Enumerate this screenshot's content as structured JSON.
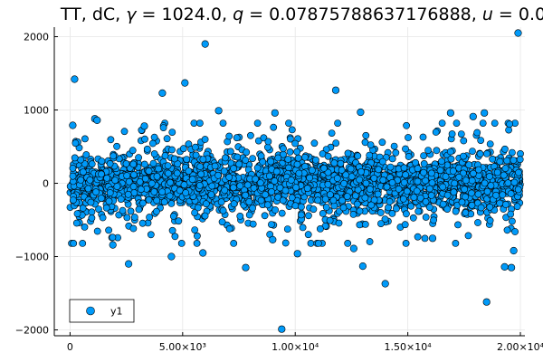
{
  "chart_data": {
    "type": "scatter",
    "title": "TT, dC, γ = 1024.0, q = 0.07875788637176888, u = 0.0",
    "title_parts": {
      "prefix": "TT, dC, ",
      "gamma_sym": "γ",
      "gamma_val": " = 1024.0, ",
      "q_sym": "q",
      "q_val": " = 0.07875788637176888, ",
      "u_sym": "u",
      "u_val": " = 0.0"
    },
    "xlabel": "",
    "ylabel": "",
    "xlim": [
      -700,
      20200
    ],
    "ylim": [
      -2080,
      2130
    ],
    "x_ticks": [
      0,
      5000,
      10000,
      15000,
      20000
    ],
    "x_tick_labels": [
      "0",
      "5.00×10³",
      "1.00×10⁴",
      "1.50×10⁴",
      "2.00×10⁴"
    ],
    "y_ticks": [
      -2000,
      -1000,
      0,
      1000,
      2000
    ],
    "y_tick_labels": [
      "−2000",
      "−1000",
      "0",
      "1000",
      "2000"
    ],
    "grid": true,
    "legend": {
      "position": "bottom-left",
      "label": "y1"
    },
    "colors": {
      "series": "#009AF9",
      "stroke": "#000000",
      "grid": "#e6e6e6"
    },
    "series": [
      {
        "name": "y1",
        "n_points": 20000,
        "x_range": [
          1,
          20000
        ],
        "typical_abs_y": 300,
        "outliers": [
          {
            "x": 200,
            "y": 1420
          },
          {
            "x": 120,
            "y": 790
          },
          {
            "x": 1100,
            "y": 880
          },
          {
            "x": 1200,
            "y": 860
          },
          {
            "x": 4100,
            "y": 1230
          },
          {
            "x": 5100,
            "y": 1370
          },
          {
            "x": 6000,
            "y": 1900
          },
          {
            "x": 6600,
            "y": 990
          },
          {
            "x": 9100,
            "y": 960
          },
          {
            "x": 11800,
            "y": 1270
          },
          {
            "x": 12900,
            "y": 970
          },
          {
            "x": 19900,
            "y": 2050
          },
          {
            "x": 16900,
            "y": 960
          },
          {
            "x": 17900,
            "y": 910
          },
          {
            "x": 18400,
            "y": 960
          },
          {
            "x": 3300,
            "y": 780
          },
          {
            "x": 2600,
            "y": -1100
          },
          {
            "x": 4500,
            "y": -1000
          },
          {
            "x": 7800,
            "y": -1150
          },
          {
            "x": 9400,
            "y": -1990
          },
          {
            "x": 10100,
            "y": -960
          },
          {
            "x": 12600,
            "y": -890
          },
          {
            "x": 13000,
            "y": -1130
          },
          {
            "x": 14000,
            "y": -1370
          },
          {
            "x": 18500,
            "y": -1620
          },
          {
            "x": 19300,
            "y": -1140
          },
          {
            "x": 19600,
            "y": -1150
          },
          {
            "x": 19700,
            "y": -920
          },
          {
            "x": 1900,
            "y": -840
          },
          {
            "x": 5900,
            "y": -950
          },
          {
            "x": 9000,
            "y": -770
          },
          {
            "x": 16100,
            "y": -750
          }
        ]
      }
    ]
  }
}
